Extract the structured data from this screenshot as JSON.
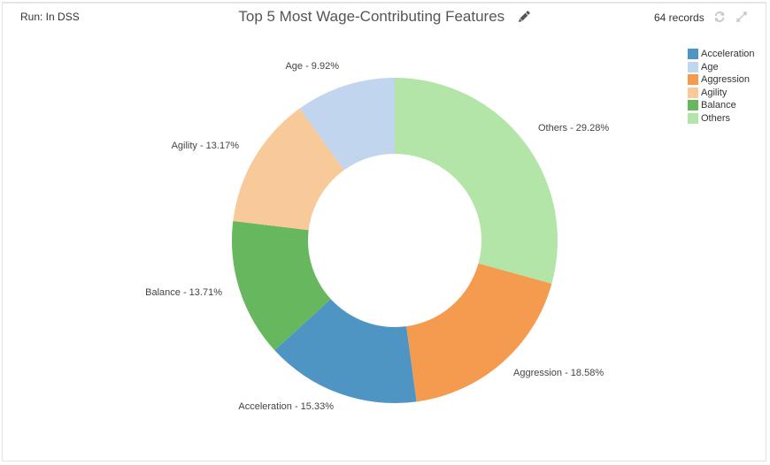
{
  "header": {
    "run_label": "Run: In DSS",
    "title": "Top 5 Most Wage-Contributing Features",
    "records": "64 records",
    "icons": [
      "edit-icon",
      "refresh-icon",
      "expand-icon"
    ]
  },
  "legend": {
    "items": [
      {
        "label": "Acceleration",
        "color": "#4f95c4"
      },
      {
        "label": "Age",
        "color": "#c2d5ee"
      },
      {
        "label": "Aggression",
        "color": "#f59b50"
      },
      {
        "label": "Agility",
        "color": "#f8ca9a"
      },
      {
        "label": "Balance",
        "color": "#67b75f"
      },
      {
        "label": "Others",
        "color": "#b2e5a7"
      }
    ]
  },
  "chart_data": {
    "type": "pie",
    "subtype": "donut",
    "title": "Top 5 Most Wage-Contributing Features",
    "legend_position": "top-right",
    "start_angle": "12 o'clock, clockwise",
    "slices": [
      {
        "label": "Others",
        "value": 29.28,
        "display": "Others - 29.28%",
        "color": "#b2e5a7"
      },
      {
        "label": "Aggression",
        "value": 18.58,
        "display": "Aggression - 18.58%",
        "color": "#f59b50"
      },
      {
        "label": "Acceleration",
        "value": 15.33,
        "display": "Acceleration - 15.33%",
        "color": "#4f95c4"
      },
      {
        "label": "Balance",
        "value": 13.71,
        "display": "Balance - 13.71%",
        "color": "#67b75f"
      },
      {
        "label": "Agility",
        "value": 13.17,
        "display": "Agility - 13.17%",
        "color": "#f8ca9a"
      },
      {
        "label": "Age",
        "value": 9.92,
        "display": "Age - 9.92%",
        "color": "#c2d5ee"
      }
    ],
    "unit": "%"
  }
}
